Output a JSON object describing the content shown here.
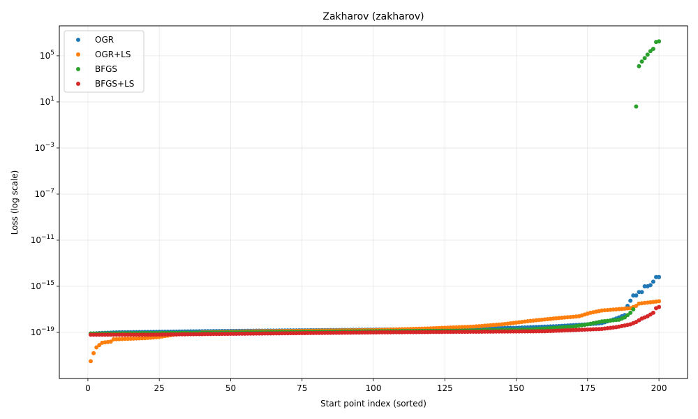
{
  "chart_data": {
    "type": "scatter",
    "title": "Zakharov (zakharov)",
    "xlabel": "Start point index (sorted)",
    "ylabel": "Loss (log scale)",
    "xlim": [
      -10,
      210
    ],
    "ylim_log10": [
      -23.0,
      7.6
    ],
    "y_scale": "log",
    "grid": true,
    "legend_position": "upper-left",
    "x_ticks": [
      {
        "value": 0,
        "label": "0"
      },
      {
        "value": 25,
        "label": "25"
      },
      {
        "value": 50,
        "label": "50"
      },
      {
        "value": 75,
        "label": "75"
      },
      {
        "value": 100,
        "label": "100"
      },
      {
        "value": 125,
        "label": "125"
      },
      {
        "value": 150,
        "label": "150"
      },
      {
        "value": 175,
        "label": "175"
      },
      {
        "value": 200,
        "label": "200"
      }
    ],
    "y_ticks": [
      {
        "exp": -19,
        "base": "10",
        "sup": "−19"
      },
      {
        "exp": -15,
        "base": "10",
        "sup": "−15"
      },
      {
        "exp": -11,
        "base": "10",
        "sup": "−11"
      },
      {
        "exp": -7,
        "base": "10",
        "sup": "−7"
      },
      {
        "exp": -3,
        "base": "10",
        "sup": "−3"
      },
      {
        "exp": 1,
        "base": "10",
        "sup": "1"
      },
      {
        "exp": 5,
        "base": "10",
        "sup": "5"
      }
    ],
    "series": [
      {
        "name": "OGR",
        "color": "#1f77b4",
        "keypoints": [
          [
            1,
            -19.1
          ],
          [
            5,
            -19.05
          ],
          [
            10,
            -19.0
          ],
          [
            25,
            -18.95
          ],
          [
            40,
            -18.9
          ],
          [
            60,
            -18.85
          ],
          [
            85,
            -18.8
          ],
          [
            105,
            -18.75
          ],
          [
            120,
            -18.7
          ],
          [
            150,
            -18.6
          ],
          [
            165,
            -18.45
          ],
          [
            175,
            -18.3
          ],
          [
            180,
            -18.2
          ],
          [
            185,
            -17.8
          ],
          [
            188,
            -17.5
          ],
          [
            189,
            -16.7
          ],
          [
            191,
            -15.8
          ],
          [
            192,
            -15.8
          ],
          [
            193,
            -15.5
          ],
          [
            194,
            -15.5
          ],
          [
            195,
            -15.0
          ],
          [
            196,
            -15.0
          ],
          [
            197,
            -14.9
          ],
          [
            198,
            -14.6
          ],
          [
            199,
            -14.2
          ],
          [
            200,
            -14.2
          ]
        ]
      },
      {
        "name": "OGR+LS",
        "color": "#ff7f0e",
        "keypoints": [
          [
            1,
            -21.5
          ],
          [
            2,
            -20.8
          ],
          [
            3,
            -20.3
          ],
          [
            4,
            -20.1
          ],
          [
            5,
            -19.9
          ],
          [
            8,
            -19.8
          ],
          [
            9,
            -19.6
          ],
          [
            20,
            -19.5
          ],
          [
            25,
            -19.4
          ],
          [
            30,
            -19.2
          ],
          [
            40,
            -19.0
          ],
          [
            60,
            -18.9
          ],
          [
            80,
            -18.85
          ],
          [
            100,
            -18.8
          ],
          [
            120,
            -18.65
          ],
          [
            135,
            -18.5
          ],
          [
            145,
            -18.3
          ],
          [
            155,
            -18.0
          ],
          [
            165,
            -17.75
          ],
          [
            172,
            -17.6
          ],
          [
            176,
            -17.3
          ],
          [
            180,
            -17.1
          ],
          [
            190,
            -16.9
          ],
          [
            192,
            -16.7
          ],
          [
            193,
            -16.5
          ],
          [
            200,
            -16.3
          ]
        ]
      },
      {
        "name": "BFGS",
        "color": "#2ca02c",
        "keypoints": [
          [
            1,
            -19.1
          ],
          [
            25,
            -19.05
          ],
          [
            50,
            -19.0
          ],
          [
            75,
            -18.95
          ],
          [
            100,
            -18.9
          ],
          [
            130,
            -18.85
          ],
          [
            155,
            -18.75
          ],
          [
            170,
            -18.5
          ],
          [
            175,
            -18.3
          ],
          [
            180,
            -18.05
          ],
          [
            186,
            -17.9
          ],
          [
            188,
            -17.7
          ],
          [
            190,
            -17.3
          ],
          [
            191,
            -17.0
          ],
          [
            192,
            0.6
          ],
          [
            193,
            4.1
          ],
          [
            194,
            4.5
          ],
          [
            195,
            4.8
          ],
          [
            196,
            5.1
          ],
          [
            197,
            5.4
          ],
          [
            198,
            5.6
          ],
          [
            199,
            6.2
          ],
          [
            200,
            6.25
          ]
        ]
      },
      {
        "name": "BFGS+LS",
        "color": "#d62728",
        "keypoints": [
          [
            1,
            -19.2
          ],
          [
            20,
            -19.2
          ],
          [
            40,
            -19.15
          ],
          [
            60,
            -19.1
          ],
          [
            80,
            -19.05
          ],
          [
            100,
            -19.0
          ],
          [
            130,
            -18.95
          ],
          [
            160,
            -18.9
          ],
          [
            170,
            -18.8
          ],
          [
            180,
            -18.7
          ],
          [
            185,
            -18.55
          ],
          [
            188,
            -18.4
          ],
          [
            190,
            -18.3
          ],
          [
            192,
            -18.1
          ],
          [
            194,
            -17.8
          ],
          [
            196,
            -17.6
          ],
          [
            198,
            -17.3
          ],
          [
            199,
            -16.9
          ],
          [
            200,
            -16.8
          ]
        ]
      }
    ]
  }
}
